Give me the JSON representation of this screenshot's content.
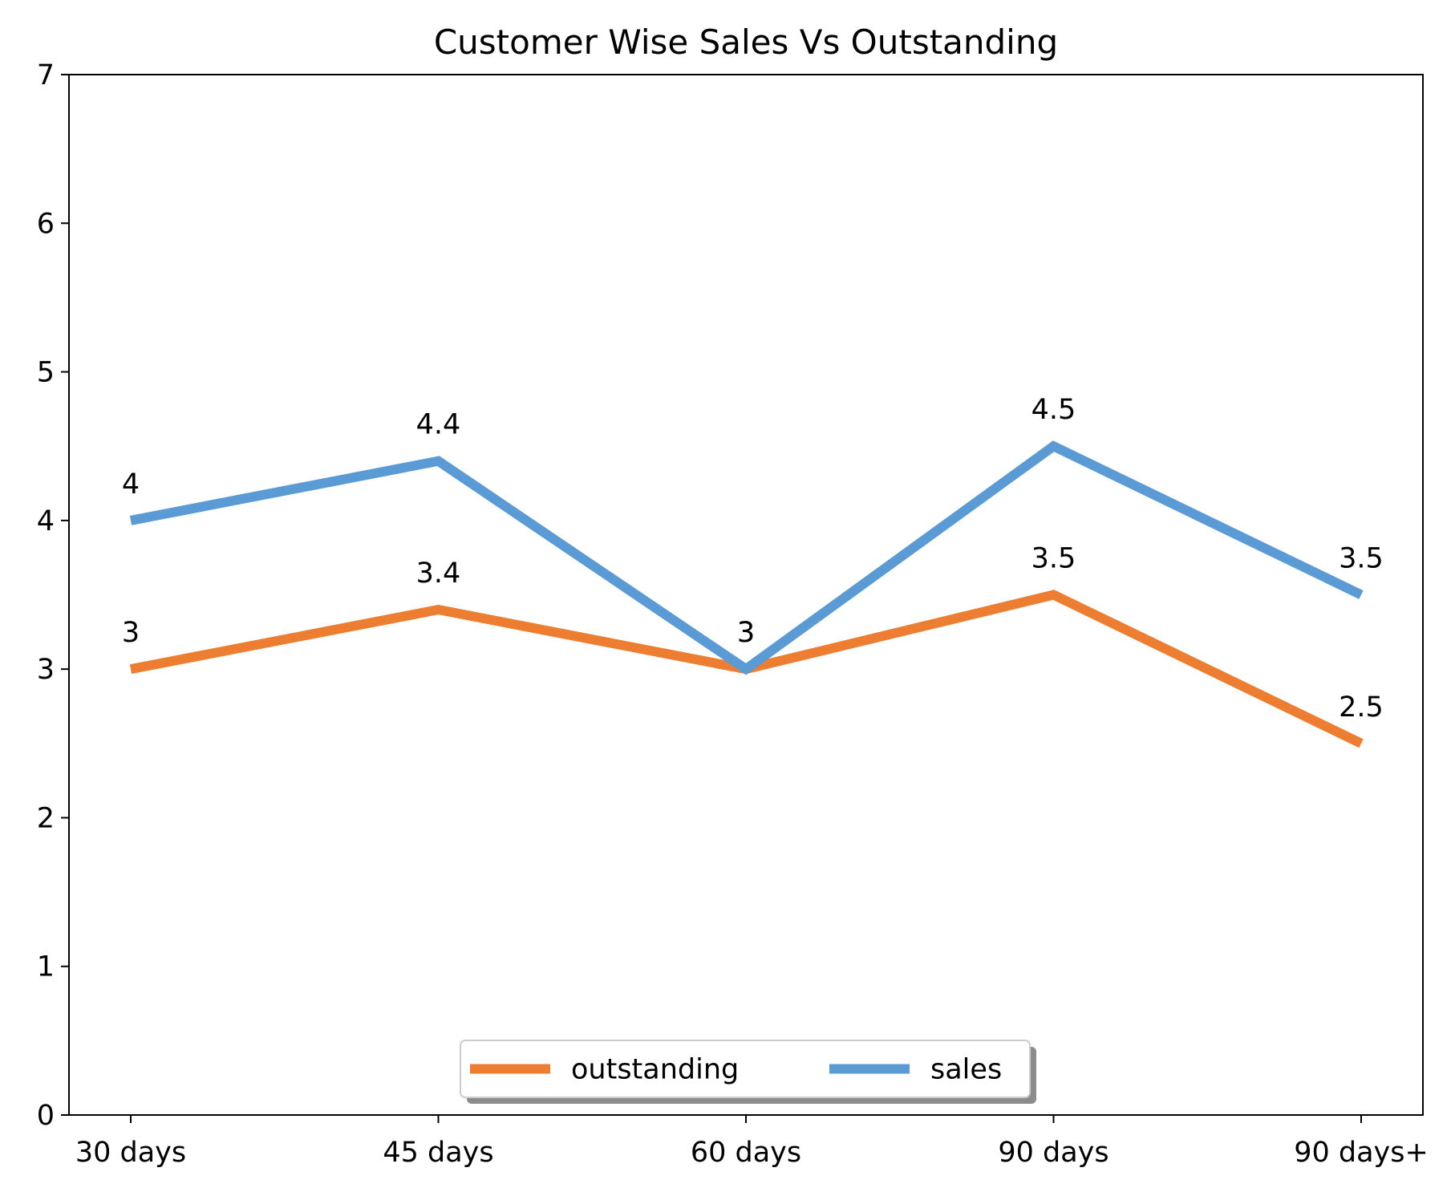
{
  "chart_data": {
    "type": "line",
    "title": "Customer Wise Sales Vs Outstanding",
    "xlabel": "",
    "ylabel": "",
    "categories": [
      "30 days",
      "45 days",
      "60 days",
      "90 days",
      "90 days+"
    ],
    "yticks": [
      "0",
      "1",
      "2",
      "3",
      "4",
      "5",
      "6",
      "7"
    ],
    "ylim": [
      0,
      7
    ],
    "grid": false,
    "legend_position": "lower-center",
    "series": [
      {
        "name": "outstanding",
        "color": "#ED7D31",
        "values": [
          3,
          3.4,
          3,
          3.5,
          2.5
        ],
        "labels": [
          "3",
          "3.4",
          "3",
          "3.5",
          "2.5"
        ]
      },
      {
        "name": "sales",
        "color": "#5B9BD5",
        "values": [
          4,
          4.4,
          3,
          4.5,
          3.5
        ],
        "labels": [
          "4",
          "4.4",
          "3",
          "4.5",
          "3.5"
        ]
      }
    ]
  }
}
